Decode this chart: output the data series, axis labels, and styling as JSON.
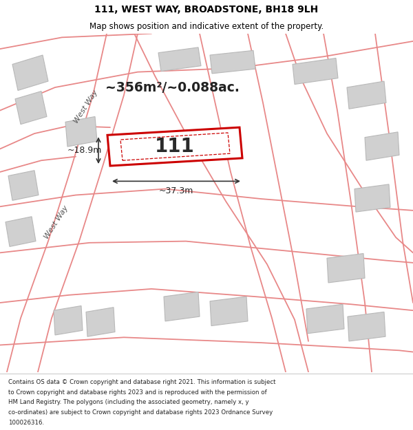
{
  "title": "111, WEST WAY, BROADSTONE, BH18 9LH",
  "subtitle": "Map shows position and indicative extent of the property.",
  "footer_lines": [
    "Contains OS data © Crown copyright and database right 2021. This information is subject",
    "to Crown copyright and database rights 2023 and is reproduced with the permission of",
    "HM Land Registry. The polygons (including the associated geometry, namely x, y",
    "co-ordinates) are subject to Crown copyright and database rights 2023 Ordnance Survey",
    "100026316."
  ],
  "map_bg": "#f0f0f0",
  "building_fill": "#d0d0d0",
  "building_edge": "#b8b8b8",
  "road_color": "#e88888",
  "highlight_fill": "#ffffff",
  "highlight_edge": "#cc0000",
  "highlight_lw": 2.2,
  "area_text": "~356m²/~0.088ac.",
  "property_number": "111",
  "dim_width": "~37.3m",
  "dim_height": "~18.9m",
  "west_way_label": "West Way",
  "fig_width": 6.0,
  "fig_height": 6.25
}
